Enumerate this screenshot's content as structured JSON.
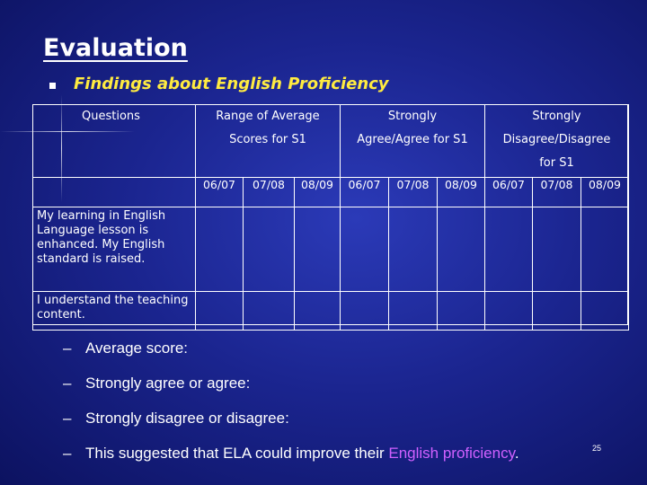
{
  "slide": {
    "title": "Evaluation",
    "subtitle": "Findings about English Proficiency",
    "page_number": "25"
  },
  "table": {
    "header": {
      "questions": "Questions",
      "range_line1": "Range of Average",
      "range_line2": "Scores for S1",
      "agree_line1": "Strongly",
      "agree_line2": "Agree/Agree for S1",
      "disagree_line1": "Strongly",
      "disagree_line2": "Disagree/Disagree",
      "disagree_line3": "for S1"
    },
    "years": [
      "06/07",
      "07/08",
      "08/09",
      "06/07",
      "07/08",
      "08/09",
      "06/07",
      "07/08",
      "08/09"
    ],
    "rows": [
      {
        "statement": "My learning in English Language lesson is enhanced. My English standard is raised."
      },
      {
        "statement": "I understand the teaching content."
      }
    ]
  },
  "bullets": {
    "average": "Average score:",
    "agree": "Strongly agree or agree:",
    "disagree": "Strongly disagree or disagree:",
    "conclusion_pre": "This suggested that ELA could improve their ",
    "conclusion_highlight": "English proficiency",
    "conclusion_post": "."
  },
  "colors": {
    "background": "#1b2590",
    "subtitle": "#ffeb40",
    "highlight": "#d060ff"
  }
}
